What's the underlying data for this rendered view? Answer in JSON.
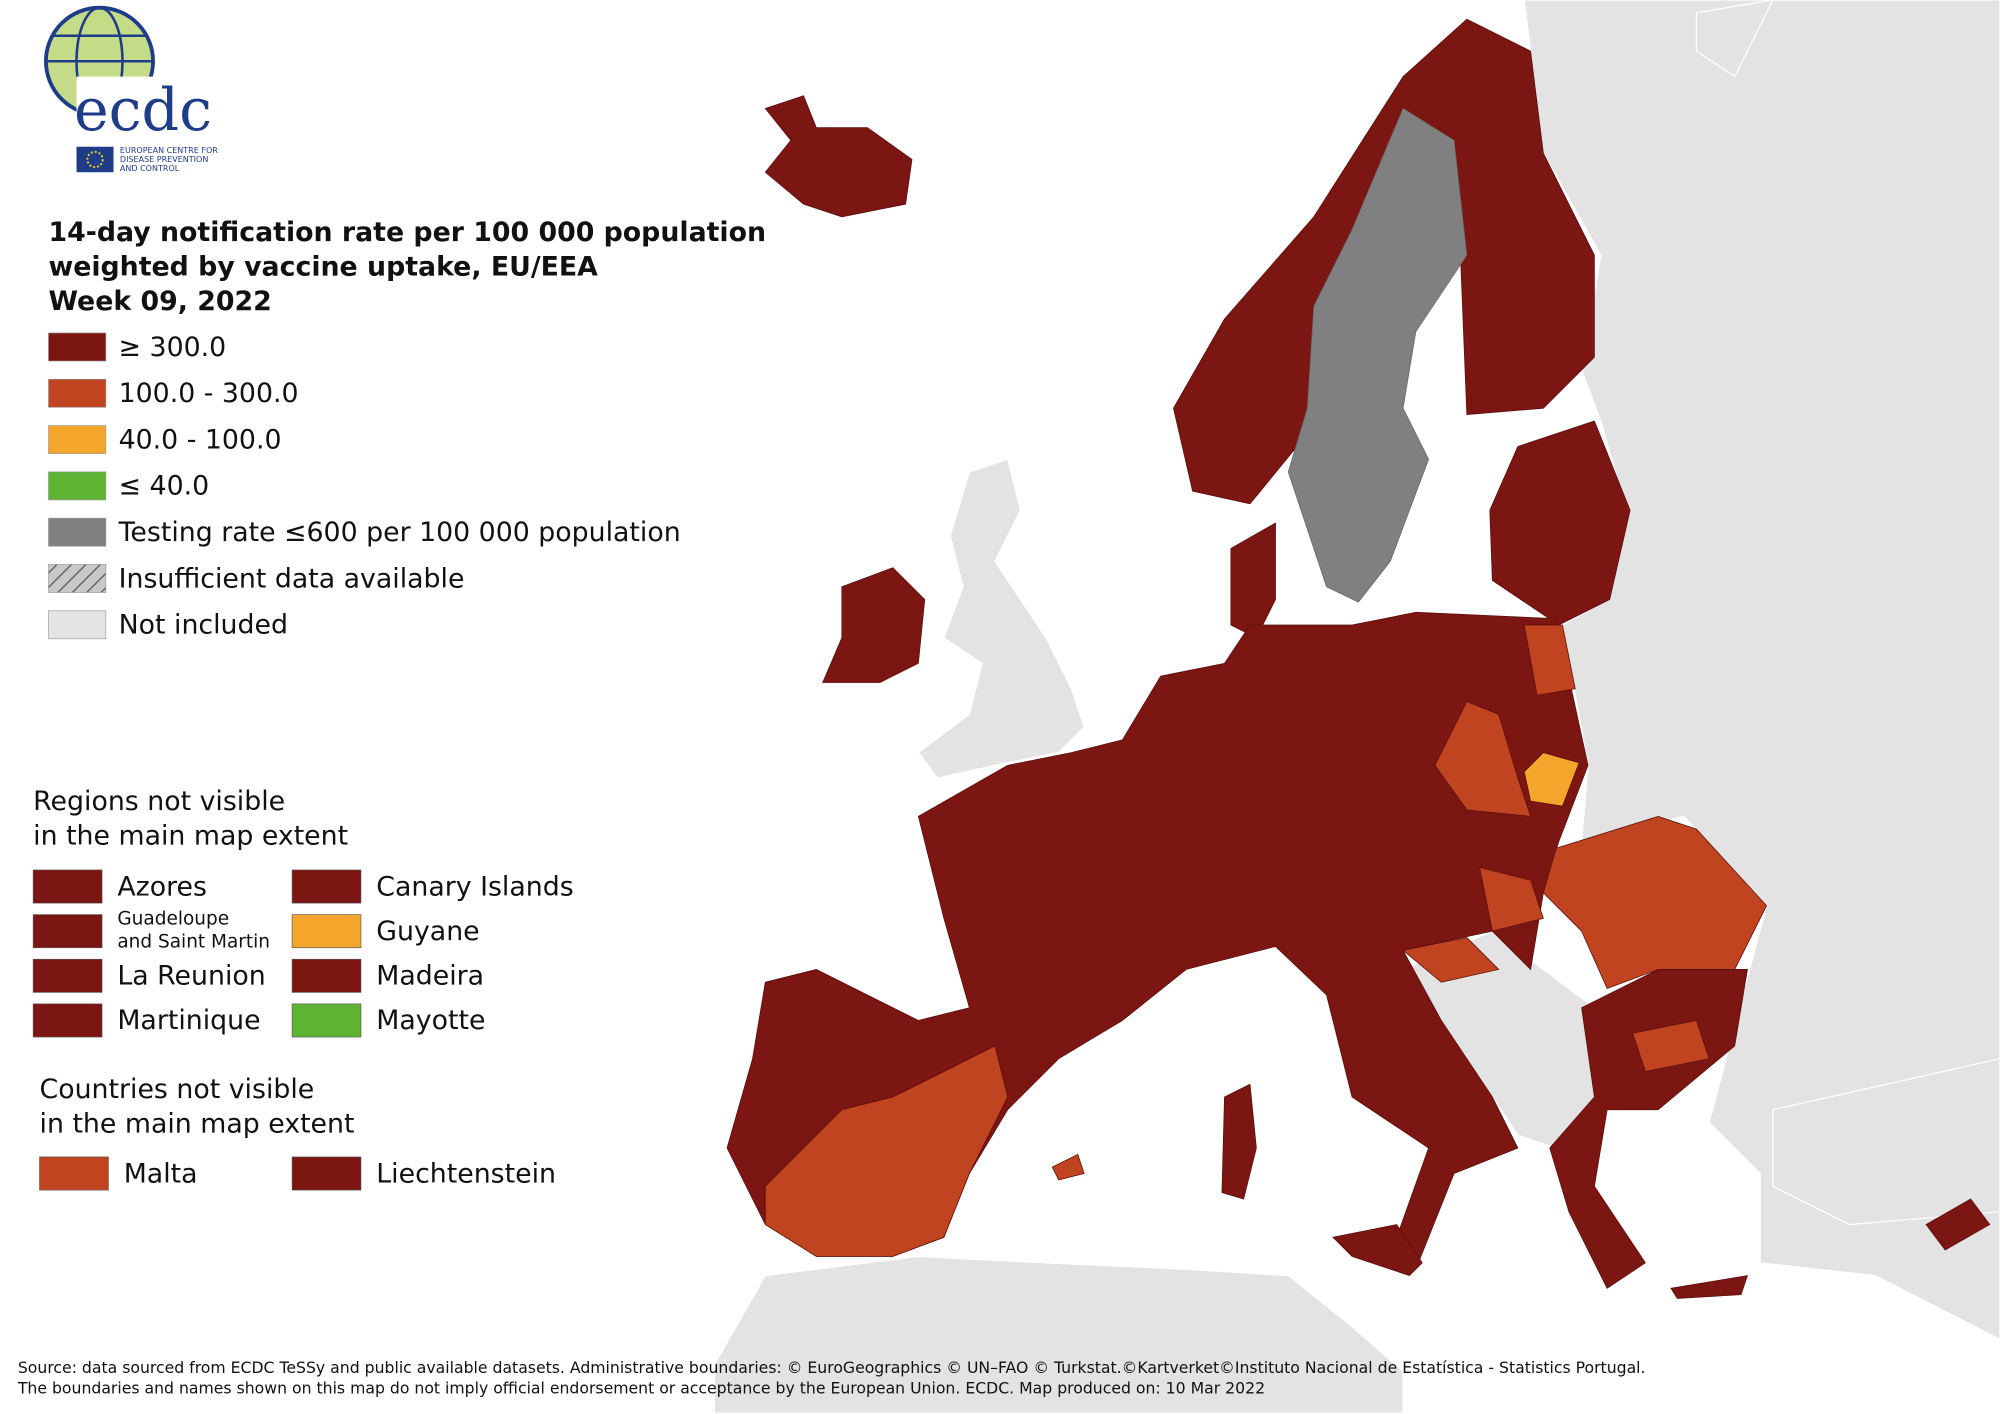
{
  "logo": {
    "name": "ecdc",
    "org": [
      "EUROPEAN CENTRE FOR",
      "DISEASE PREVENTION",
      "AND CONTROL"
    ]
  },
  "title": [
    "14-day notification rate per 100 000 population",
    "weighted by vaccine uptake, EU/EEA",
    "Week 09, 2022"
  ],
  "legend": [
    {
      "label": "≥ 300.0",
      "color": "#7b1613"
    },
    {
      "label": "100.0 - 300.0",
      "color": "#c0441f"
    },
    {
      "label": "40.0 - 100.0",
      "color": "#f4a52b"
    },
    {
      "label": "≤ 40.0",
      "color": "#5fb332"
    },
    {
      "label": "Testing rate ≤600 per 100 000 population",
      "color": "#808080"
    },
    {
      "label": "Insufficient data available",
      "color": "#c8c8c8",
      "pattern": "hatch"
    },
    {
      "label": "Not included",
      "color": "#e3e3e3"
    }
  ],
  "regions": {
    "heading": [
      "Regions not visible",
      "in the main map extent"
    ],
    "items": [
      {
        "label": [
          "Azores"
        ],
        "color": "#7b1613"
      },
      {
        "label": [
          "Canary Islands"
        ],
        "color": "#7b1613"
      },
      {
        "label": [
          "Guadeloupe",
          "and Saint Martin"
        ],
        "color": "#7b1613"
      },
      {
        "label": [
          "Guyane"
        ],
        "color": "#f4a52b"
      },
      {
        "label": [
          "La Reunion"
        ],
        "color": "#7b1613"
      },
      {
        "label": [
          "Madeira"
        ],
        "color": "#7b1613"
      },
      {
        "label": [
          "Martinique"
        ],
        "color": "#7b1613"
      },
      {
        "label": [
          "Mayotte"
        ],
        "color": "#5fb332"
      }
    ]
  },
  "countries": {
    "heading": [
      "Countries not visible",
      "in the main map extent"
    ],
    "items": [
      {
        "label": [
          "Malta"
        ],
        "color": "#c0441f"
      },
      {
        "label": [
          "Liechtenstein"
        ],
        "color": "#7b1613"
      }
    ]
  },
  "footer": [
    "Source: data sourced from ECDC TeSSy and public available datasets. Administrative boundaries: © EuroGeographics © UN–FAO © Turkstat.©Kartverket©Instituto Nacional de Estatística - Statistics Portugal.",
    "The boundaries and names shown on this map do not imply official endorsement or acceptance by the European Union. ECDC. Map produced on: 10 Mar 2022"
  ]
}
